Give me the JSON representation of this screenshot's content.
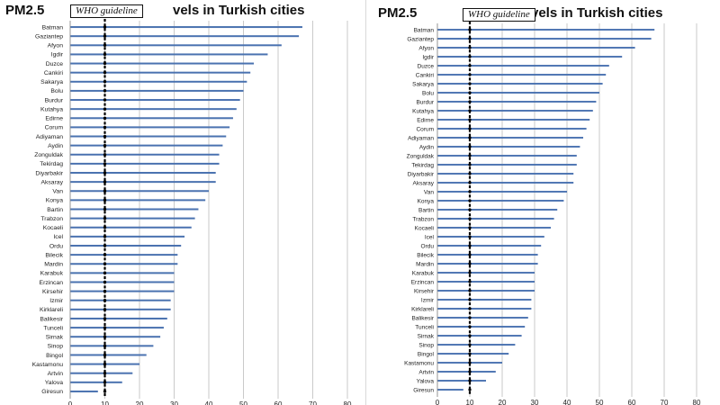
{
  "chart_data": [
    {
      "type": "bar",
      "orientation": "horizontal",
      "title_left": "PM2.5",
      "title_right": "vels in Turkish cities",
      "guideline_label": "WHO guideline",
      "guideline_value": 10,
      "xlim": [
        0,
        80
      ],
      "xticks": [
        0,
        10,
        20,
        30,
        40,
        50,
        60,
        70,
        80
      ],
      "grid": "vertical",
      "bar_color": "#4a72b0",
      "guideline_color": "#000000",
      "categories": [
        "Batman",
        "Gaziantep",
        "Afyon",
        "Igdir",
        "Duzce",
        "Cankiri",
        "Sakarya",
        "Bolu",
        "Burdur",
        "Kutahya",
        "Edirne",
        "Corum",
        "Adiyaman",
        "Aydin",
        "Zonguldak",
        "Tekirdag",
        "Diyarbakir",
        "Aksaray",
        "Van",
        "Konya",
        "Bartin",
        "Trabzon",
        "Kocaeli",
        "Icel",
        "Ordu",
        "Bilecik",
        "Mardin",
        "Karabuk",
        "Erzincan",
        "Kirsehir",
        "Izmir",
        "Kirklareli",
        "Balikesir",
        "Tunceli",
        "Sirnak",
        "Sinop",
        "Bingol",
        "Kastamonu",
        "Artvin",
        "Yalova",
        "Giresun"
      ],
      "values": [
        67,
        66,
        61,
        57,
        53,
        52,
        51,
        50,
        49,
        48,
        47,
        46,
        45,
        44,
        43,
        43,
        42,
        42,
        40,
        39,
        37,
        36,
        35,
        33,
        32,
        31,
        31,
        30,
        30,
        30,
        29,
        29,
        28,
        27,
        26,
        24,
        22,
        20,
        18,
        15,
        8
      ]
    },
    {
      "type": "bar",
      "orientation": "horizontal",
      "title_left": "PM2.5",
      "title_right": "vels in Turkish cities",
      "guideline_label": "WHO guideline",
      "guideline_value": 10,
      "xlim": [
        0,
        80
      ],
      "xticks": [
        0,
        10,
        20,
        30,
        40,
        50,
        60,
        70,
        80
      ],
      "grid": "vertical",
      "bar_color": "#4a72b0",
      "guideline_color": "#000000",
      "categories": [
        "Batman",
        "Gaziantep",
        "Afyon",
        "Igdir",
        "Duzce",
        "Cankiri",
        "Sakarya",
        "Bolu",
        "Burdur",
        "Kutahya",
        "Edirne",
        "Corum",
        "Adiyaman",
        "Aydin",
        "Zonguldak",
        "Tekirdag",
        "Diyarbakir",
        "Aksaray",
        "Van",
        "Konya",
        "Bartin",
        "Trabzon",
        "Kocaeli",
        "Icel",
        "Ordu",
        "Bilecik",
        "Mardin",
        "Karabuk",
        "Erzincan",
        "Kirsehir",
        "Izmir",
        "Kirklareli",
        "Balikesir",
        "Tunceli",
        "Sirnak",
        "Sinop",
        "Bingol",
        "Kastamonu",
        "Artvin",
        "Yalova",
        "Giresun"
      ],
      "values": [
        67,
        66,
        61,
        57,
        53,
        52,
        51,
        50,
        49,
        48,
        47,
        46,
        45,
        44,
        43,
        43,
        42,
        42,
        40,
        39,
        37,
        36,
        35,
        33,
        32,
        31,
        31,
        30,
        30,
        30,
        29,
        29,
        28,
        27,
        26,
        24,
        22,
        20,
        18,
        15,
        8
      ]
    }
  ]
}
